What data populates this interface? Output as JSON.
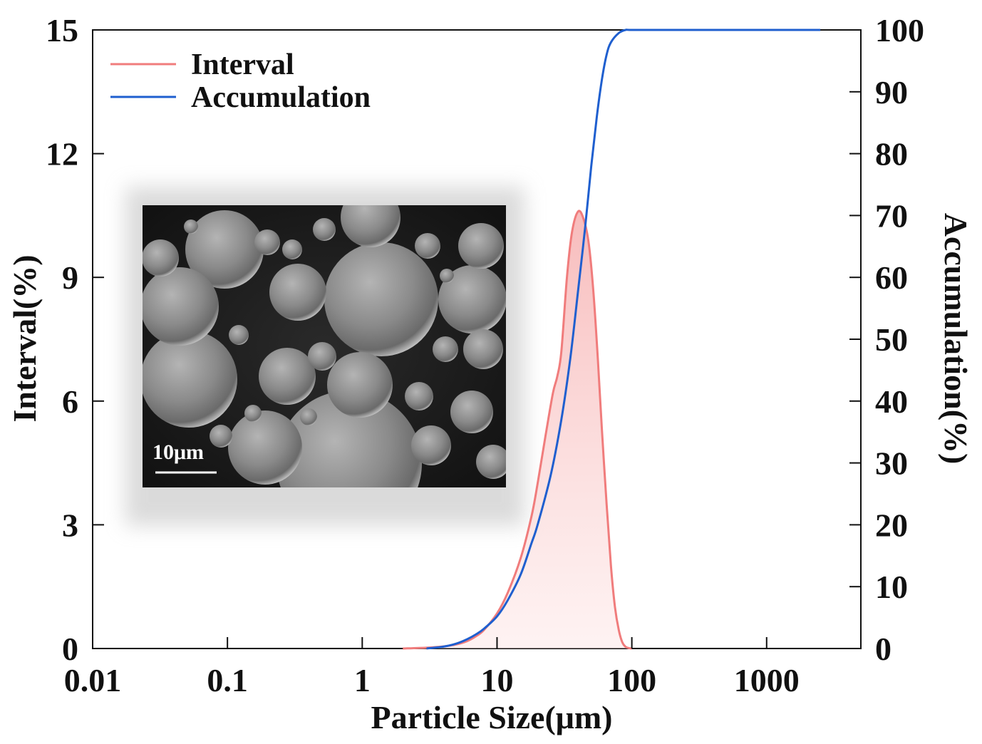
{
  "chart_data": {
    "type": "line",
    "title": "",
    "xlabel": "Particle Size(μm)",
    "ylabel_left": "Interval(%)",
    "ylabel_right": "Accumulation(%)",
    "x_scale": "log",
    "xlim": [
      0.01,
      5000
    ],
    "ylim_left": [
      0,
      15
    ],
    "ylim_right": [
      0,
      100
    ],
    "x_ticks": [
      0.01,
      0.1,
      1,
      10,
      100,
      1000
    ],
    "x_tick_labels": [
      "0.01",
      "0.1",
      "1",
      "10",
      "100",
      "1000"
    ],
    "y_left_ticks": [
      0,
      3,
      6,
      9,
      12,
      15
    ],
    "y_left_tick_labels": [
      "0",
      "3",
      "6",
      "9",
      "12",
      "15"
    ],
    "y_right_ticks": [
      0,
      10,
      20,
      30,
      40,
      50,
      60,
      70,
      80,
      90,
      100
    ],
    "y_right_tick_labels": [
      "0",
      "10",
      "20",
      "30",
      "40",
      "50",
      "60",
      "70",
      "80",
      "90",
      "100"
    ],
    "legend_position": "top-left",
    "series": [
      {
        "name": "Interval",
        "axis": "left",
        "color": "#f07c7c",
        "fill": "#fbdcdc",
        "x": [
          2,
          3,
          4,
          5,
          6,
          7,
          8,
          10,
          12,
          15,
          18,
          20,
          23,
          26,
          28,
          30,
          33,
          36,
          40,
          44,
          48,
          52,
          56,
          60,
          65,
          70,
          75,
          80,
          85,
          90,
          95,
          100
        ],
        "values": [
          0,
          0.02,
          0.05,
          0.1,
          0.18,
          0.3,
          0.45,
          0.85,
          1.35,
          2.2,
          3.2,
          4.0,
          5.2,
          6.2,
          6.6,
          7.2,
          9.0,
          10.1,
          10.6,
          10.4,
          9.8,
          8.6,
          7.0,
          5.3,
          3.5,
          2.0,
          1.0,
          0.45,
          0.15,
          0.04,
          0.01,
          0
        ]
      },
      {
        "name": "Accumulation",
        "axis": "right",
        "color": "#1f5fcf",
        "x": [
          3,
          4,
          5,
          6,
          7,
          8,
          10,
          12,
          15,
          18,
          20,
          25,
          30,
          35,
          40,
          45,
          50,
          55,
          60,
          65,
          70,
          80,
          90,
          100,
          200,
          500,
          1000,
          2500
        ],
        "values": [
          0,
          0.3,
          0.8,
          1.5,
          2.3,
          3.2,
          5.2,
          7.8,
          12,
          17,
          20,
          28,
          37,
          47,
          58,
          68,
          78,
          86,
          92,
          96,
          98,
          99.5,
          100,
          100,
          100,
          100,
          100,
          100
        ]
      }
    ]
  },
  "inset": {
    "description_label": "SEM micrograph inset",
    "scale_bar_label": "10μm"
  }
}
